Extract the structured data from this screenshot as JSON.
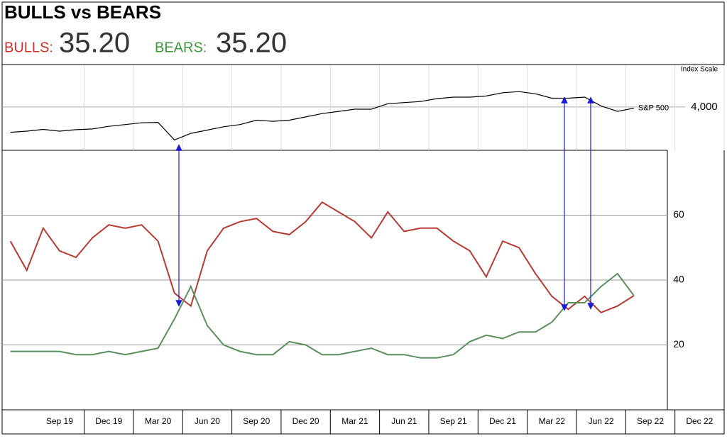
{
  "header": {
    "title": "BULLS vs BEARS",
    "bulls_label": "BULLS:",
    "bulls_value": "35.20",
    "bears_label": "BEARS:",
    "bears_value": "35.20"
  },
  "chart_data": [
    {
      "type": "line",
      "axis_label": "Index Scale",
      "x": [
        "2019-05",
        "2019-06",
        "2019-07",
        "2019-08",
        "2019-09",
        "2019-10",
        "2019-11",
        "2019-12",
        "2020-01",
        "2020-02",
        "2020-03",
        "2020-04",
        "2020-05",
        "2020-06",
        "2020-07",
        "2020-08",
        "2020-09",
        "2020-10",
        "2020-11",
        "2020-12",
        "2021-01",
        "2021-02",
        "2021-03",
        "2021-04",
        "2021-05",
        "2021-06",
        "2021-07",
        "2021-08",
        "2021-09",
        "2021-10",
        "2021-11",
        "2021-12",
        "2022-01",
        "2022-02",
        "2022-03",
        "2022-04",
        "2022-05",
        "2022-06",
        "2022-07"
      ],
      "series": [
        {
          "name": "S&P 500",
          "color": "#000000",
          "values": [
            2850,
            2900,
            2980,
            2900,
            2970,
            3000,
            3120,
            3200,
            3280,
            3300,
            2500,
            2800,
            2950,
            3100,
            3200,
            3400,
            3350,
            3400,
            3550,
            3700,
            3800,
            3900,
            3900,
            4150,
            4200,
            4250,
            4380,
            4450,
            4450,
            4500,
            4650,
            4700,
            4600,
            4400,
            4400,
            4450,
            4050,
            3800,
            3950
          ]
        }
      ],
      "xlim": [
        "2019-05",
        "2022-12"
      ],
      "ylim": [
        2030,
        5900
      ],
      "yticks": [
        {
          "value": 4000,
          "label": "4,000"
        }
      ]
    },
    {
      "type": "line",
      "x": [
        "2019-05",
        "2019-06",
        "2019-07",
        "2019-08",
        "2019-09",
        "2019-10",
        "2019-11",
        "2019-12",
        "2020-01",
        "2020-02",
        "2020-03",
        "2020-04",
        "2020-05",
        "2020-06",
        "2020-07",
        "2020-08",
        "2020-09",
        "2020-10",
        "2020-11",
        "2020-12",
        "2021-01",
        "2021-02",
        "2021-03",
        "2021-04",
        "2021-05",
        "2021-06",
        "2021-07",
        "2021-08",
        "2021-09",
        "2021-10",
        "2021-11",
        "2021-12",
        "2022-01",
        "2022-02",
        "2022-03",
        "2022-04",
        "2022-05",
        "2022-06",
        "2022-07"
      ],
      "series": [
        {
          "color": "#b83a32",
          "values": [
            52,
            43,
            56,
            49,
            47,
            53,
            57,
            56,
            57,
            52,
            36,
            32,
            49,
            56,
            58,
            59,
            55,
            54,
            58,
            64,
            61,
            58,
            53,
            61,
            55,
            56,
            56,
            52,
            49,
            41,
            52,
            50,
            42,
            35,
            31,
            35,
            30,
            32,
            35.2
          ]
        },
        {
          "color": "#5a8f5e",
          "values": [
            18,
            18,
            18,
            18,
            17,
            17,
            18,
            17,
            18,
            19,
            28,
            38,
            26,
            20,
            18,
            17,
            17,
            21,
            20,
            17,
            17,
            18,
            19,
            17,
            17,
            16,
            16,
            17,
            21,
            23,
            22,
            24,
            24,
            27,
            33,
            33,
            38,
            42,
            35.2
          ]
        }
      ],
      "xlim": [
        "2019-05",
        "2022-12"
      ],
      "ylim": [
        0,
        80
      ],
      "yticks": [
        20,
        40,
        60
      ],
      "xticks": [
        {
          "value": "2019-09",
          "label": "Sep 19"
        },
        {
          "value": "2019-12",
          "label": "Dec 19"
        },
        {
          "value": "2020-03",
          "label": "Mar 20"
        },
        {
          "value": "2020-06",
          "label": "Jun 20"
        },
        {
          "value": "2020-09",
          "label": "Sep 20"
        },
        {
          "value": "2020-12",
          "label": "Dec 20"
        },
        {
          "value": "2021-03",
          "label": "Mar 21"
        },
        {
          "value": "2021-06",
          "label": "Jun 21"
        },
        {
          "value": "2021-09",
          "label": "Sep 21"
        },
        {
          "value": "2021-12",
          "label": "Dec 21"
        },
        {
          "value": "2022-03",
          "label": "Mar 22"
        },
        {
          "value": "2022-06",
          "label": "Jun 22"
        },
        {
          "value": "2022-09",
          "label": "Sep 22"
        },
        {
          "value": "2022-12",
          "label": "Dec 22"
        }
      ]
    }
  ]
}
